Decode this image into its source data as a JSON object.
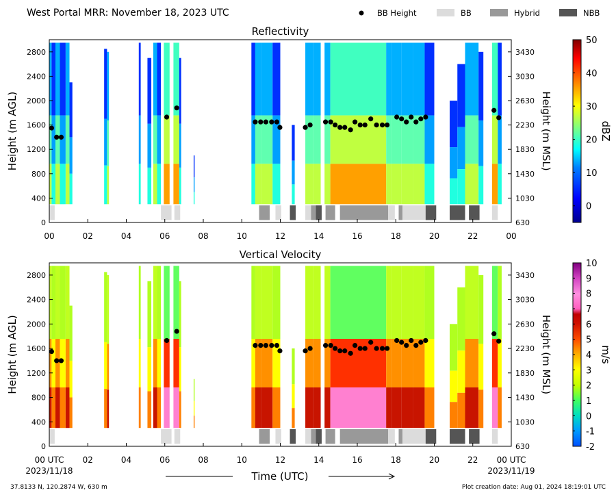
{
  "header": {
    "title": "West Portal MRR:  November 18, 2023 UTC"
  },
  "legend": [
    {
      "label": "BB Height",
      "kind": "dot",
      "color": "#000000"
    },
    {
      "label": "BB",
      "kind": "box",
      "color": "#dcdcdc"
    },
    {
      "label": "Hybrid",
      "kind": "box",
      "color": "#999999"
    },
    {
      "label": "NBB",
      "kind": "box",
      "color": "#555555"
    }
  ],
  "footer": {
    "location": "37.8133 N, 120.2874 W, 630 m",
    "creation": "Plot creation date: Aug 01, 2024 18:19:01 UTC",
    "xlabel": "Time (UTC)",
    "start_label": "00 UTC",
    "start_date": "2023/11/18",
    "end_label": "00 UTC",
    "end_date": "2023/11/19"
  },
  "chart_data": [
    {
      "type": "heatmap",
      "title": "Reflectivity",
      "ylabel": "Height (m AGL)",
      "ylabel_right": "Height (m MSL)",
      "xlim": [
        0,
        24
      ],
      "ylim": [
        0,
        3000
      ],
      "x_ticks": [
        "00",
        "02",
        "04",
        "06",
        "08",
        "10",
        "12",
        "14",
        "16",
        "18",
        "20",
        "22",
        "00"
      ],
      "y_ticks": [
        "0",
        "400",
        "800",
        "1200",
        "1600",
        "2000",
        "2400",
        "2800"
      ],
      "y_ticks_right": [
        "630",
        "1030",
        "1430",
        "1830",
        "2230",
        "2630",
        "3030",
        "3430"
      ],
      "colorbar": {
        "label": "dBZ",
        "min": -5,
        "max": 50,
        "ticks": [
          "0",
          "10",
          "20",
          "30",
          "40",
          "50"
        ]
      }
    },
    {
      "type": "heatmap",
      "title": "Vertical Velocity",
      "ylabel": "Height (m AGL)",
      "ylabel_right": "Height (m MSL)",
      "xlim": [
        0,
        24
      ],
      "ylim": [
        0,
        3000
      ],
      "x_ticks": [
        "00 UTC",
        "02",
        "04",
        "06",
        "08",
        "10",
        "12",
        "14",
        "16",
        "18",
        "20",
        "22",
        "00 UTC"
      ],
      "y_ticks": [
        "0",
        "400",
        "800",
        "1200",
        "1600",
        "2000",
        "2400",
        "2800"
      ],
      "y_ticks_right": [
        "630",
        "1030",
        "1430",
        "1830",
        "2230",
        "2630",
        "3030",
        "3430"
      ],
      "colorbar": {
        "label": "m/s",
        "min": -2,
        "max": 10,
        "ticks": [
          "-2",
          "-1",
          "0",
          "1",
          "2",
          "3",
          "4",
          "5",
          "6",
          "7",
          "8",
          "9",
          "10"
        ]
      }
    }
  ],
  "bb_height": {
    "time": [
      0.12,
      0.38,
      0.62,
      6.1,
      6.62,
      10.7,
      10.98,
      11.25,
      11.55,
      11.82,
      11.98,
      13.3,
      13.55,
      14.35,
      14.62,
      14.85,
      15.1,
      15.35,
      15.65,
      15.88,
      16.15,
      16.4,
      16.7,
      17.0,
      17.3,
      17.55,
      18.05,
      18.3,
      18.55,
      18.8,
      19.05,
      19.3,
      19.55,
      23.1,
      23.35
    ],
    "height": [
      1550,
      1400,
      1400,
      1730,
      1880,
      1650,
      1650,
      1650,
      1650,
      1650,
      1560,
      1560,
      1600,
      1650,
      1650,
      1600,
      1560,
      1560,
      1520,
      1650,
      1600,
      1600,
      1700,
      1600,
      1600,
      1600,
      1730,
      1700,
      1650,
      1730,
      1650,
      1700,
      1730,
      1840,
      1720
    ]
  },
  "classification": [
    {
      "start": 0.0,
      "end": 0.28,
      "type": "BB"
    },
    {
      "start": 5.8,
      "end": 6.35,
      "type": "BB"
    },
    {
      "start": 6.5,
      "end": 6.8,
      "type": "BB"
    },
    {
      "start": 10.9,
      "end": 11.45,
      "type": "Hybrid"
    },
    {
      "start": 11.75,
      "end": 12.05,
      "type": "BB"
    },
    {
      "start": 12.5,
      "end": 12.8,
      "type": "NBB"
    },
    {
      "start": 13.3,
      "end": 13.6,
      "type": "BB"
    },
    {
      "start": 13.6,
      "end": 13.85,
      "type": "Hybrid"
    },
    {
      "start": 13.85,
      "end": 14.15,
      "type": "NBB"
    },
    {
      "start": 14.35,
      "end": 14.85,
      "type": "Hybrid"
    },
    {
      "start": 15.1,
      "end": 17.6,
      "type": "Hybrid"
    },
    {
      "start": 17.6,
      "end": 17.95,
      "type": "BB"
    },
    {
      "start": 18.15,
      "end": 18.35,
      "type": "Hybrid"
    },
    {
      "start": 18.35,
      "end": 19.55,
      "type": "BB"
    },
    {
      "start": 19.55,
      "end": 20.1,
      "type": "NBB"
    },
    {
      "start": 20.8,
      "end": 21.6,
      "type": "NBB"
    },
    {
      "start": 21.8,
      "end": 22.35,
      "type": "NBB"
    },
    {
      "start": 23.0,
      "end": 23.3,
      "type": "BB"
    }
  ]
}
